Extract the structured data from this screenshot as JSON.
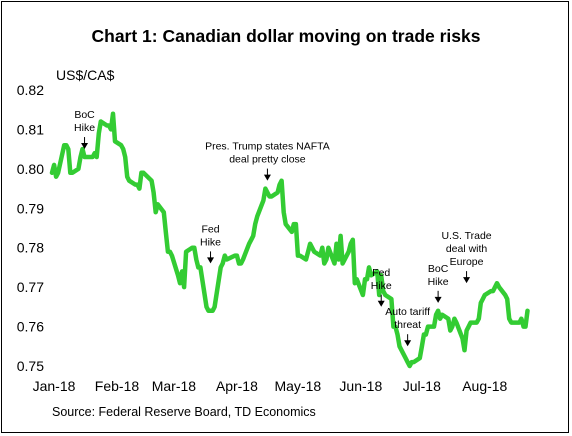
{
  "chart_data": {
    "type": "line",
    "title": "Chart 1: Canadian dollar moving on trade risks",
    "ylabel": "US$/CA$",
    "xlabel": "",
    "source": "Source: Federal Reserve Board, TD Economics",
    "ylim": [
      0.75,
      0.82
    ],
    "yticks": [
      "0.82",
      "0.81",
      "0.80",
      "0.79",
      "0.78",
      "0.77",
      "0.76",
      "0.75"
    ],
    "ytick_values": [
      0.82,
      0.81,
      0.8,
      0.79,
      0.78,
      0.77,
      0.76,
      0.75
    ],
    "x_range": [
      "2018-01-01",
      "2018-09-08"
    ],
    "xticks": [
      {
        "label": "Jan-18",
        "date": "2018-01-01"
      },
      {
        "label": "Feb-18",
        "date": "2018-02-01"
      },
      {
        "label": "Mar-18",
        "date": "2018-03-01"
      },
      {
        "label": "Apr-18",
        "date": "2018-04-01"
      },
      {
        "label": "May-18",
        "date": "2018-05-01"
      },
      {
        "label": "Jun-18",
        "date": "2018-06-01"
      },
      {
        "label": "Jul-18",
        "date": "2018-07-01"
      },
      {
        "label": "Aug-18",
        "date": "2018-08-01"
      }
    ],
    "grid": false,
    "line_color": "#33cc33",
    "series": [
      {
        "name": "",
        "points": [
          [
            "2018-01-02",
            0.799
          ],
          [
            "2018-01-03",
            0.801
          ],
          [
            "2018-01-04",
            0.798
          ],
          [
            "2018-01-05",
            0.799
          ],
          [
            "2018-01-08",
            0.806
          ],
          [
            "2018-01-09",
            0.806
          ],
          [
            "2018-01-10",
            0.805
          ],
          [
            "2018-01-11",
            0.799
          ],
          [
            "2018-01-12",
            0.799
          ],
          [
            "2018-01-15",
            0.8
          ],
          [
            "2018-01-16",
            0.803
          ],
          [
            "2018-01-17",
            0.805
          ],
          [
            "2018-01-18",
            0.803
          ],
          [
            "2018-01-19",
            0.803
          ],
          [
            "2018-01-22",
            0.803
          ],
          [
            "2018-01-23",
            0.804
          ],
          [
            "2018-01-24",
            0.803
          ],
          [
            "2018-01-25",
            0.809
          ],
          [
            "2018-01-26",
            0.812
          ],
          [
            "2018-01-29",
            0.811
          ],
          [
            "2018-01-30",
            0.811
          ],
          [
            "2018-01-31",
            0.81
          ],
          [
            "2018-02-01",
            0.814
          ],
          [
            "2018-02-02",
            0.807
          ],
          [
            "2018-02-05",
            0.806
          ],
          [
            "2018-02-06",
            0.805
          ],
          [
            "2018-02-07",
            0.803
          ],
          [
            "2018-02-08",
            0.798
          ],
          [
            "2018-02-09",
            0.797
          ],
          [
            "2018-02-12",
            0.796
          ],
          [
            "2018-02-13",
            0.796
          ],
          [
            "2018-02-14",
            0.795
          ],
          [
            "2018-02-15",
            0.799
          ],
          [
            "2018-02-16",
            0.799
          ],
          [
            "2018-02-20",
            0.797
          ],
          [
            "2018-02-21",
            0.794
          ],
          [
            "2018-02-22",
            0.789
          ],
          [
            "2018-02-23",
            0.791
          ],
          [
            "2018-02-26",
            0.789
          ],
          [
            "2018-02-27",
            0.784
          ],
          [
            "2018-02-28",
            0.779
          ],
          [
            "2018-03-01",
            0.779
          ],
          [
            "2018-03-02",
            0.778
          ],
          [
            "2018-03-05",
            0.773
          ],
          [
            "2018-03-06",
            0.771
          ],
          [
            "2018-03-07",
            0.774
          ],
          [
            "2018-03-08",
            0.77
          ],
          [
            "2018-03-09",
            0.779
          ],
          [
            "2018-03-12",
            0.78
          ],
          [
            "2018-03-13",
            0.78
          ],
          [
            "2018-03-14",
            0.777
          ],
          [
            "2018-03-15",
            0.775
          ],
          [
            "2018-03-16",
            0.775
          ],
          [
            "2018-03-19",
            0.765
          ],
          [
            "2018-03-20",
            0.764
          ],
          [
            "2018-03-21",
            0.764
          ],
          [
            "2018-03-22",
            0.764
          ],
          [
            "2018-03-23",
            0.765
          ],
          [
            "2018-03-26",
            0.775
          ],
          [
            "2018-03-27",
            0.776
          ],
          [
            "2018-03-28",
            0.778
          ],
          [
            "2018-03-29",
            0.777
          ],
          [
            "2018-04-02",
            0.778
          ],
          [
            "2018-04-03",
            0.778
          ],
          [
            "2018-04-04",
            0.776
          ],
          [
            "2018-04-05",
            0.776
          ],
          [
            "2018-04-06",
            0.777
          ],
          [
            "2018-04-09",
            0.781
          ],
          [
            "2018-04-10",
            0.782
          ],
          [
            "2018-04-11",
            0.783
          ],
          [
            "2018-04-12",
            0.786
          ],
          [
            "2018-04-13",
            0.788
          ],
          [
            "2018-04-16",
            0.792
          ],
          [
            "2018-04-17",
            0.795
          ],
          [
            "2018-04-18",
            0.794
          ],
          [
            "2018-04-19",
            0.793
          ],
          [
            "2018-04-20",
            0.793
          ],
          [
            "2018-04-23",
            0.794
          ],
          [
            "2018-04-24",
            0.796
          ],
          [
            "2018-04-25",
            0.797
          ],
          [
            "2018-04-26",
            0.789
          ],
          [
            "2018-04-27",
            0.786
          ],
          [
            "2018-04-30",
            0.784
          ],
          [
            "2018-05-01",
            0.786
          ],
          [
            "2018-05-02",
            0.786
          ],
          [
            "2018-05-03",
            0.778
          ],
          [
            "2018-05-04",
            0.778
          ],
          [
            "2018-05-07",
            0.777
          ],
          [
            "2018-05-08",
            0.779
          ],
          [
            "2018-05-09",
            0.781
          ],
          [
            "2018-05-10",
            0.78
          ],
          [
            "2018-05-11",
            0.779
          ],
          [
            "2018-05-14",
            0.778
          ],
          [
            "2018-05-15",
            0.78
          ],
          [
            "2018-05-16",
            0.776
          ],
          [
            "2018-05-17",
            0.777
          ],
          [
            "2018-05-18",
            0.78
          ],
          [
            "2018-05-21",
            0.776
          ],
          [
            "2018-05-22",
            0.781
          ],
          [
            "2018-05-23",
            0.777
          ],
          [
            "2018-05-24",
            0.783
          ],
          [
            "2018-05-25",
            0.776
          ],
          [
            "2018-05-28",
            0.779
          ],
          [
            "2018-05-29",
            0.781
          ],
          [
            "2018-05-30",
            0.782
          ],
          [
            "2018-05-31",
            0.771
          ],
          [
            "2018-06-01",
            0.772
          ],
          [
            "2018-06-04",
            0.768
          ],
          [
            "2018-06-05",
            0.772
          ],
          [
            "2018-06-06",
            0.772
          ],
          [
            "2018-06-07",
            0.775
          ],
          [
            "2018-06-08",
            0.773
          ],
          [
            "2018-06-11",
            0.774
          ],
          [
            "2018-06-12",
            0.768
          ],
          [
            "2018-06-13",
            0.773
          ],
          [
            "2018-06-14",
            0.769
          ],
          [
            "2018-06-15",
            0.768
          ],
          [
            "2018-06-18",
            0.767
          ],
          [
            "2018-06-19",
            0.76
          ],
          [
            "2018-06-20",
            0.76
          ],
          [
            "2018-06-21",
            0.758
          ],
          [
            "2018-06-22",
            0.755
          ],
          [
            "2018-06-25",
            0.752
          ],
          [
            "2018-06-26",
            0.751
          ],
          [
            "2018-06-27",
            0.75
          ],
          [
            "2018-06-28",
            0.751
          ],
          [
            "2018-06-29",
            0.751
          ],
          [
            "2018-07-02",
            0.752
          ],
          [
            "2018-07-03",
            0.755
          ],
          [
            "2018-07-04",
            0.758
          ],
          [
            "2018-07-05",
            0.758
          ],
          [
            "2018-07-06",
            0.76
          ],
          [
            "2018-07-09",
            0.76
          ],
          [
            "2018-07-10",
            0.763
          ],
          [
            "2018-07-11",
            0.764
          ],
          [
            "2018-07-12",
            0.762
          ],
          [
            "2018-07-13",
            0.763
          ],
          [
            "2018-07-16",
            0.762
          ],
          [
            "2018-07-17",
            0.759
          ],
          [
            "2018-07-18",
            0.76
          ],
          [
            "2018-07-19",
            0.762
          ],
          [
            "2018-07-20",
            0.761
          ],
          [
            "2018-07-23",
            0.757
          ],
          [
            "2018-07-24",
            0.754
          ],
          [
            "2018-07-25",
            0.759
          ],
          [
            "2018-07-26",
            0.76
          ],
          [
            "2018-07-27",
            0.761
          ],
          [
            "2018-07-30",
            0.761
          ],
          [
            "2018-07-31",
            0.762
          ],
          [
            "2018-08-01",
            0.766
          ],
          [
            "2018-08-02",
            0.767
          ],
          [
            "2018-08-03",
            0.768
          ],
          [
            "2018-08-06",
            0.769
          ],
          [
            "2018-08-07",
            0.769
          ],
          [
            "2018-08-08",
            0.77
          ],
          [
            "2018-08-09",
            0.771
          ],
          [
            "2018-08-10",
            0.77
          ],
          [
            "2018-08-13",
            0.768
          ],
          [
            "2018-08-14",
            0.767
          ],
          [
            "2018-08-15",
            0.762
          ],
          [
            "2018-08-16",
            0.761
          ],
          [
            "2018-08-17",
            0.761
          ],
          [
            "2018-08-20",
            0.761
          ],
          [
            "2018-08-21",
            0.762
          ],
          [
            "2018-08-22",
            0.76
          ],
          [
            "2018-08-23",
            0.76
          ],
          [
            "2018-08-24",
            0.764
          ]
        ]
      }
    ],
    "annotations": [
      {
        "lines": [
          "BoC",
          "Hike"
        ],
        "date": "2018-01-18",
        "value": 0.8035
      },
      {
        "lines": [
          "Pres. Trump states NAFTA",
          "deal pretty close"
        ],
        "date": "2018-04-18",
        "value": 0.7955
      },
      {
        "lines": [
          "Fed",
          "Hike"
        ],
        "date": "2018-03-21",
        "value": 0.7745
      },
      {
        "lines": [
          "Auto tariff",
          "threat"
        ],
        "date": "2018-06-26",
        "value": 0.7535
      },
      {
        "lines": [
          "Fed",
          "Hike"
        ],
        "date": "2018-06-13",
        "value": 0.7635
      },
      {
        "lines": [
          "BoC",
          "Hike"
        ],
        "date": "2018-07-11",
        "value": 0.7645
      },
      {
        "lines": [
          "U.S. Trade",
          "deal with",
          "Europe"
        ],
        "date": "2018-07-25",
        "value": 0.7695
      }
    ]
  }
}
